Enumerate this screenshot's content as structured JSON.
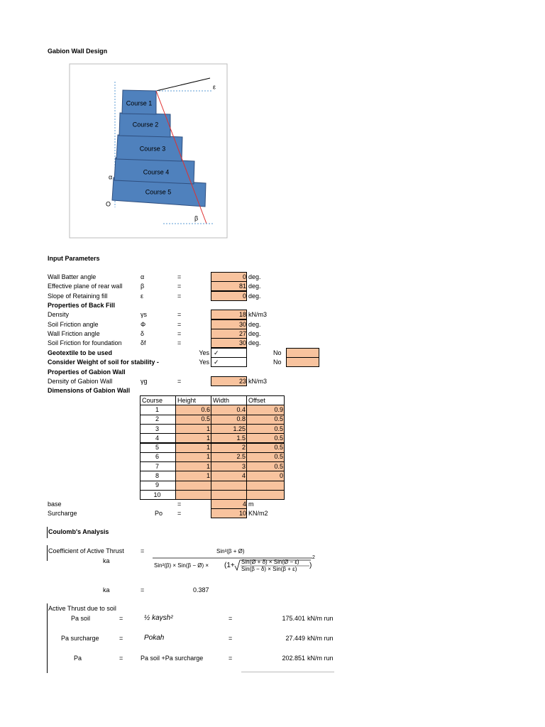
{
  "title": "Gabion Wall Design",
  "diagram": {
    "courses": [
      "Course 1",
      "Course 2",
      "Course 3",
      "Course 4",
      "Course 5"
    ],
    "epsilon": "ε",
    "alpha": "α",
    "origin": "O",
    "beta": "β"
  },
  "input_parameters": {
    "heading": "Input Parameters",
    "rows": [
      {
        "label": "Wall Batter angle",
        "symbol": "α",
        "eq": "=",
        "value": 0,
        "unit": "deg."
      },
      {
        "label": "Effective plane of rear wall",
        "symbol": "β",
        "eq": "=",
        "value": 81,
        "unit": "deg."
      },
      {
        "label": "Slope of Retaining fill",
        "symbol": "ε",
        "eq": "=",
        "value": 0,
        "unit": "deg."
      },
      {
        "heading": "Properties of Back Fill"
      },
      {
        "label": "Density",
        "symbol": "γs",
        "eq": "=",
        "value": 18,
        "unit": "kN/m3"
      },
      {
        "label": "Soil Friction angle",
        "symbol": "Φ",
        "eq": "=",
        "value": 30,
        "unit": "deg."
      },
      {
        "label": "Wall Friction angle",
        "symbol": "δ",
        "eq": "=",
        "value": 27,
        "unit": "deg."
      },
      {
        "label": "Soil Friction for foundation",
        "symbol": "δf",
        "eq": "=",
        "value": 30,
        "unit": "deg."
      },
      {
        "label": "Geotextile to be used",
        "yes": "Yes",
        "check": "✓",
        "no": "No"
      },
      {
        "label": "Consider Weight of soil for stability -",
        "yes": "Yes",
        "check": "✓",
        "no": "No"
      },
      {
        "heading": "Properties of Gabion Wall"
      },
      {
        "label": "Density of Gabion Wall",
        "symbol": "γg",
        "eq": "=",
        "value": 23,
        "unit": "kN/m3"
      },
      {
        "heading": "Dimensions of Gabion Wall"
      }
    ]
  },
  "dimensions_table": {
    "header": [
      "Course",
      "Height",
      "Width",
      "Offset"
    ],
    "rows": [
      [
        1,
        0.6,
        0.4,
        0.9
      ],
      [
        2,
        0.5,
        0.8,
        0.5
      ],
      [
        3,
        1,
        1.25,
        0.5
      ],
      [
        4,
        1,
        1.5,
        0.5
      ],
      [
        5,
        1,
        2,
        0.5
      ],
      [
        6,
        1,
        2.5,
        0.5
      ],
      [
        7,
        1,
        3,
        0.5
      ],
      [
        8,
        1,
        4,
        0
      ],
      [
        9,
        null,
        null,
        null
      ],
      [
        10,
        null,
        null,
        null
      ]
    ]
  },
  "base": {
    "label": "base",
    "eq": "=",
    "value": 4,
    "unit": "m"
  },
  "surcharge": {
    "label": "Surcharge",
    "symbol": "Po",
    "eq": "=",
    "value": 10,
    "unit": "KN/m2"
  },
  "coulomb": {
    "heading": "Coulomb's Analysis",
    "coefficient": {
      "label": "Coefficient of Active Thrust",
      "eq": "=",
      "symbol": "ka",
      "formula": {
        "numerator": "Sin²(β + Ø)",
        "denominator": "Sin²(β) × Sin(β − Ø) × ",
        "one_plus": "(1+",
        "inner_numerator": "Sin(Ø + δ) × Sin(Ø − ε)",
        "inner_denominator": "Sin(β − δ) × Sin(β + ε)",
        "close": ")",
        "exponent": "2"
      }
    },
    "ka_result": {
      "symbol": "ka",
      "eq": "=",
      "value": 0.387
    },
    "active_thrust": {
      "heading": "Active Thrust due to soil",
      "rows": [
        {
          "label": "Pa soil",
          "eq": "=",
          "formula": "½ kaγsh²",
          "eq2": "=",
          "value": 175.401,
          "unit": "kN/m run"
        },
        {
          "label": "Pa surcharge",
          "eq": "=",
          "formula": "Pokah",
          "eq2": "=",
          "value": 27.449,
          "unit": "kN/m run"
        },
        {
          "label": "Pa",
          "eq": "=",
          "formula": "Pa soil +Pa surcharge",
          "eq2": "=",
          "value": 202.851,
          "unit": "kN/m run"
        }
      ]
    }
  }
}
